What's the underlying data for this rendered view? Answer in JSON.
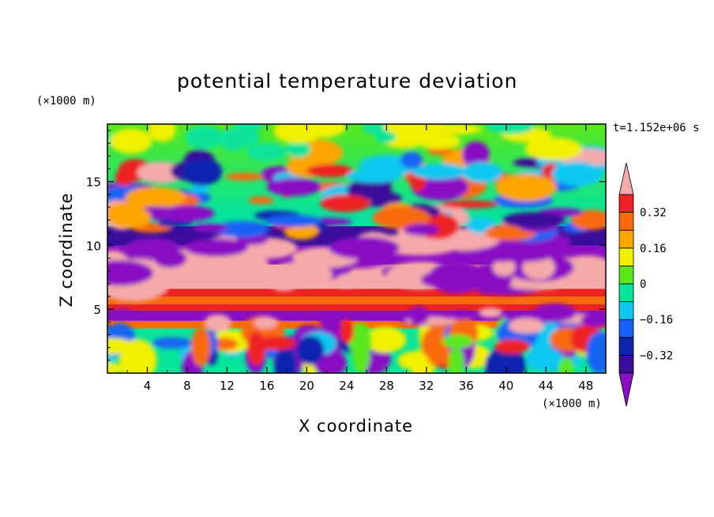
{
  "chart_data": {
    "type": "heatmap",
    "title": "potential temperature deviation",
    "xlabel": "X coordinate",
    "ylabel": "Z coordinate",
    "x_unit": "(×1000 m)",
    "y_unit": "(×1000 m)",
    "time_label": "t=1.152e+06 s",
    "xlim": [
      0,
      50
    ],
    "ylim": [
      0,
      19.5
    ],
    "x_ticks": [
      4,
      8,
      12,
      16,
      20,
      24,
      28,
      32,
      36,
      40,
      44,
      48
    ],
    "y_ticks": [
      5,
      10,
      15
    ],
    "colorbar": {
      "levels": [
        -0.4,
        -0.32,
        -0.24,
        -0.16,
        -0.08,
        0,
        0.08,
        0.16,
        0.24,
        0.32,
        0.4
      ],
      "tick_labels": [
        "0.32",
        "0.16",
        "0",
        "−0.16",
        "−0.32"
      ],
      "tick_values": [
        0.32,
        0.16,
        0,
        -0.16,
        -0.32
      ],
      "colors": [
        "#8a0fc4",
        "#3a0c9a",
        "#0d23ae",
        "#1463f4",
        "#0fc8f0",
        "#08e49a",
        "#58e81a",
        "#f0f000",
        "#fca400",
        "#f86a0a",
        "#ee2222",
        "#f5aaaa"
      ]
    }
  }
}
